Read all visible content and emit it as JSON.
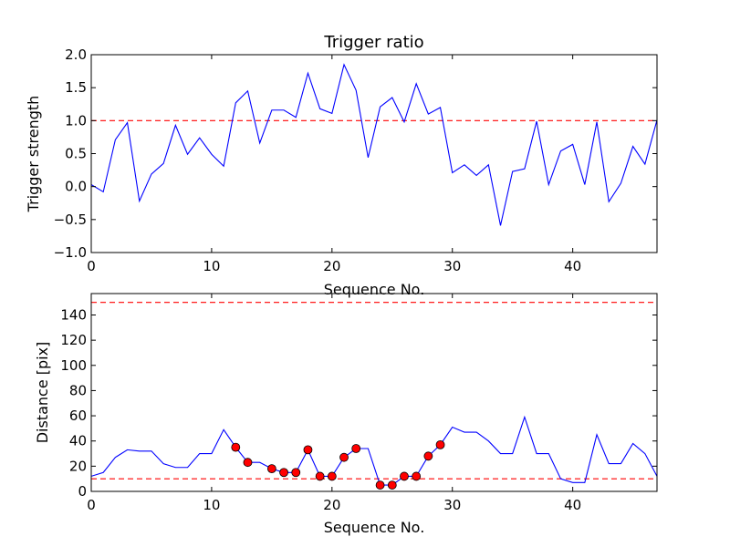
{
  "chart_data": [
    {
      "type": "line",
      "title": "Trigger ratio",
      "xlabel": "Sequence No.",
      "ylabel": "Trigger strength",
      "xlim": [
        0,
        47
      ],
      "ylim": [
        -1.0,
        2.0
      ],
      "xticks": [
        0,
        10,
        20,
        30,
        40
      ],
      "xtick_labels": [
        "0",
        "10",
        "20",
        "30",
        "40"
      ],
      "yticks": [
        -1.0,
        -0.5,
        0.0,
        0.5,
        1.0,
        1.5,
        2.0
      ],
      "ytick_labels": [
        "−1.0",
        "−0.5",
        "0.0",
        "0.5",
        "1.0",
        "1.5",
        "2.0"
      ],
      "series": [
        {
          "name": "trigger strength",
          "color": "#0000ff",
          "x": [
            0,
            1,
            2,
            3,
            4,
            5,
            6,
            7,
            8,
            9,
            10,
            11,
            12,
            13,
            14,
            15,
            16,
            17,
            18,
            19,
            20,
            21,
            22,
            23,
            24,
            25,
            26,
            27,
            28,
            29,
            30,
            31,
            32,
            33,
            34,
            35,
            36,
            37,
            38,
            39,
            40,
            41,
            42,
            43,
            44,
            45,
            46,
            47
          ],
          "values": [
            0.03,
            -0.08,
            0.71,
            0.97,
            -0.22,
            0.19,
            0.35,
            0.93,
            0.49,
            0.74,
            0.49,
            0.31,
            1.27,
            1.45,
            0.66,
            1.16,
            1.16,
            1.05,
            1.72,
            1.18,
            1.11,
            1.85,
            1.46,
            0.44,
            1.21,
            1.35,
            0.98,
            1.56,
            1.1,
            1.2,
            0.21,
            0.33,
            0.17,
            0.33,
            -0.59,
            0.23,
            0.27,
            0.99,
            0.03,
            0.54,
            0.64,
            0.03,
            0.98,
            -0.23,
            0.05,
            0.61,
            0.34,
            1.01
          ]
        }
      ],
      "reference_lines": [
        {
          "y": 1.0,
          "color": "#ff0000",
          "style": "dashed"
        }
      ]
    },
    {
      "type": "line",
      "title": "",
      "xlabel": "Sequence No.",
      "ylabel": "Distance [pix]",
      "xlim": [
        0,
        47
      ],
      "ylim": [
        0,
        157
      ],
      "xticks": [
        0,
        10,
        20,
        30,
        40
      ],
      "xtick_labels": [
        "0",
        "10",
        "20",
        "30",
        "40"
      ],
      "yticks": [
        0,
        20,
        40,
        60,
        80,
        100,
        120,
        140
      ],
      "ytick_labels": [
        "0",
        "20",
        "40",
        "60",
        "80",
        "100",
        "120",
        "140"
      ],
      "series": [
        {
          "name": "distance",
          "color": "#0000ff",
          "x": [
            0,
            1,
            2,
            3,
            4,
            5,
            6,
            7,
            8,
            9,
            10,
            11,
            12,
            13,
            14,
            15,
            16,
            17,
            18,
            19,
            20,
            21,
            22,
            23,
            24,
            25,
            26,
            27,
            28,
            29,
            30,
            31,
            32,
            33,
            34,
            35,
            36,
            37,
            38,
            39,
            40,
            41,
            42,
            43,
            44,
            45,
            46,
            47
          ],
          "values": [
            12,
            15,
            27,
            33,
            32,
            32,
            22,
            19,
            19,
            30,
            30,
            49,
            35,
            23,
            23,
            18,
            15,
            15,
            33,
            12,
            12,
            27,
            34,
            34,
            5,
            5,
            12,
            12,
            28,
            37,
            51,
            47,
            47,
            40,
            30,
            30,
            59,
            30,
            30,
            10,
            7,
            7,
            45,
            22,
            22,
            38,
            30,
            12
          ]
        },
        {
          "name": "triggered points",
          "color": "#ff0000",
          "marker": "circle",
          "x": [
            12,
            13,
            15,
            16,
            17,
            18,
            19,
            20,
            21,
            22,
            24,
            25,
            26,
            27,
            28,
            29
          ],
          "values": [
            35,
            23,
            18,
            15,
            15,
            33,
            12,
            12,
            27,
            34,
            5,
            5,
            12,
            12,
            28,
            37
          ]
        }
      ],
      "reference_lines": [
        {
          "y": 150,
          "color": "#ff0000",
          "style": "dashed"
        },
        {
          "y": 10,
          "color": "#ff0000",
          "style": "dashed"
        }
      ]
    }
  ]
}
